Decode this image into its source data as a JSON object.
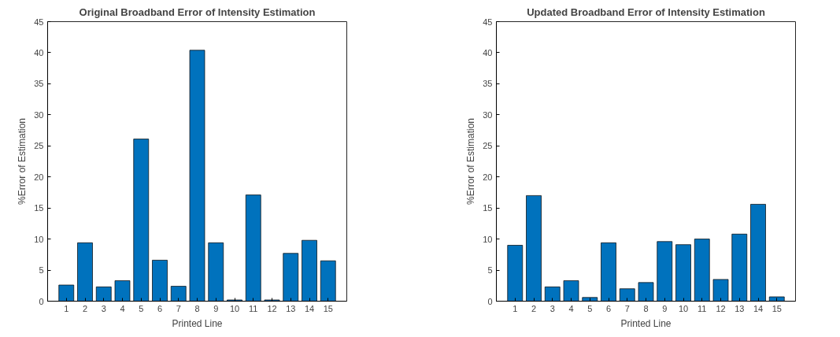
{
  "chart_data": [
    {
      "type": "bar",
      "title": "Original Broadband Error of Intensity Estimation",
      "xlabel": "Printed Line",
      "ylabel": "%Error of Estimation",
      "x": [
        1,
        2,
        3,
        4,
        5,
        6,
        7,
        8,
        9,
        10,
        11,
        12,
        13,
        14,
        15
      ],
      "values": [
        2.6,
        9.4,
        2.3,
        3.3,
        26.1,
        6.6,
        2.4,
        40.4,
        9.4,
        0.2,
        17.1,
        0.2,
        7.7,
        9.8,
        6.5
      ],
      "color": "#0072bd",
      "xlim": [
        0,
        16
      ],
      "xticks": [
        1,
        2,
        3,
        4,
        5,
        6,
        7,
        8,
        9,
        10,
        11,
        12,
        13,
        14,
        15
      ],
      "ylim": [
        0,
        45
      ],
      "yticks": [
        0,
        5,
        10,
        15,
        20,
        25,
        30,
        35,
        40,
        45
      ],
      "grid": false
    },
    {
      "type": "bar",
      "title": "Updated Broadband Error of Intensity Estimation",
      "xlabel": "Printed Line",
      "ylabel": "%Error of Estimation",
      "x": [
        1,
        2,
        3,
        4,
        5,
        6,
        7,
        8,
        9,
        10,
        11,
        12,
        13,
        14,
        15
      ],
      "values": [
        9.0,
        17.0,
        2.3,
        3.3,
        0.6,
        9.4,
        2.0,
        3.0,
        9.6,
        9.1,
        10.0,
        3.5,
        10.8,
        15.6,
        0.7
      ],
      "color": "#0072bd",
      "xlim": [
        0,
        16
      ],
      "xticks": [
        1,
        2,
        3,
        4,
        5,
        6,
        7,
        8,
        9,
        10,
        11,
        12,
        13,
        14,
        15
      ],
      "ylim": [
        0,
        45
      ],
      "yticks": [
        0,
        5,
        10,
        15,
        20,
        25,
        30,
        35,
        40,
        45
      ],
      "grid": false
    }
  ]
}
